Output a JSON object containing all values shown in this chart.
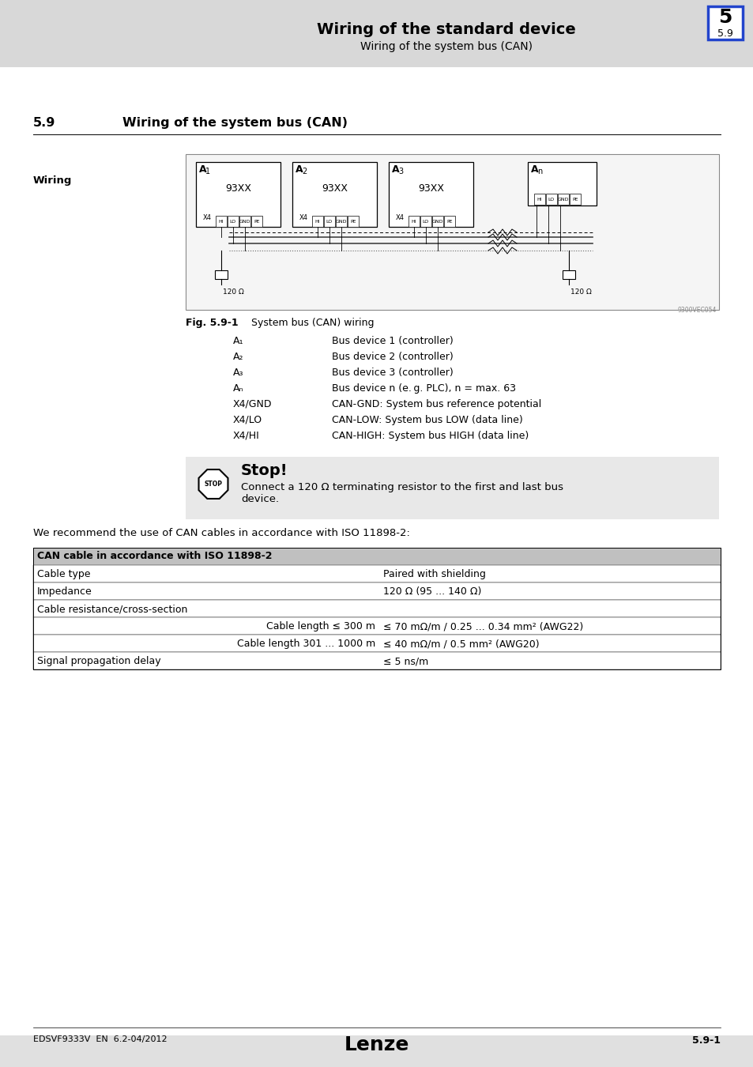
{
  "page_bg": "#e0e0e0",
  "content_bg": "#ffffff",
  "header_bg": "#d8d8d8",
  "header_title": "Wiring of the standard device",
  "header_subtitle": "Wiring of the system bus (CAN)",
  "header_chapter": "5",
  "header_section": "5.9",
  "section_number": "5.9",
  "section_title": "Wiring of the system bus (CAN)",
  "wiring_label": "Wiring",
  "fig_label": "Fig. 5.9-1",
  "fig_title": "System bus (CAN) wiring",
  "legend_items": [
    [
      "A₁",
      "Bus device 1 (controller)"
    ],
    [
      "A₂",
      "Bus device 2 (controller)"
    ],
    [
      "A₃",
      "Bus device 3 (controller)"
    ],
    [
      "Aₙ",
      "Bus device n (e. g. PLC), n = max. 63"
    ],
    [
      "X4/GND",
      "CAN-GND: System bus reference potential"
    ],
    [
      "X4/LO",
      "CAN-LOW: System bus LOW (data line)"
    ],
    [
      "X4/HI",
      "CAN-HIGH: System bus HIGH (data line)"
    ]
  ],
  "stop_title": "Stop!",
  "stop_text": "Connect a 120 Ω terminating resistor to the first and last bus\ndevice.",
  "recommend_text": "We recommend the use of CAN cables in accordance with ISO 11898-2:",
  "table_header": "CAN cable in accordance with ISO 11898-2",
  "table_rows": [
    [
      "Cable type",
      "Paired with shielding"
    ],
    [
      "Impedance",
      "120 Ω (95 ... 140 Ω)"
    ],
    [
      "Cable resistance/cross-section",
      ""
    ],
    [
      "Cable length ≤ 300 m",
      "≤ 70 mΩ/m / 0.25 ... 0.34 mm² (AWG22)"
    ],
    [
      "Cable length 301 ... 1000 m",
      "≤ 40 mΩ/m / 0.5 mm² (AWG20)"
    ],
    [
      "Signal propagation delay",
      "≤ 5 ns/m"
    ]
  ],
  "footer_left": "EDSVF9333V  EN  6.2-04/2012",
  "footer_center": "Lenze",
  "footer_right": "5.9-1"
}
